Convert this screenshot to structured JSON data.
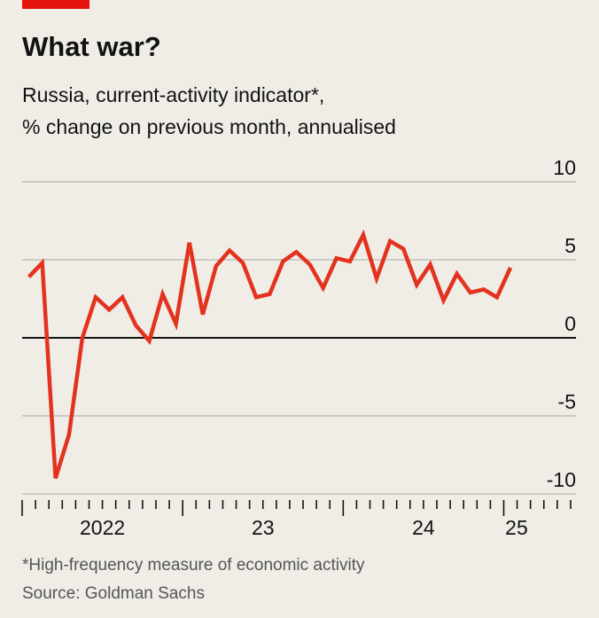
{
  "chart_data": {
    "type": "line",
    "title": "What war?",
    "subtitle": [
      "Russia, current-activity indicator*,",
      "% change on previous month, annualised"
    ],
    "x": [
      2022.042,
      2022.125,
      2022.208,
      2022.292,
      2022.375,
      2022.458,
      2022.542,
      2022.625,
      2022.708,
      2022.792,
      2022.875,
      2022.958,
      2023.042,
      2023.125,
      2023.208,
      2023.292,
      2023.375,
      2023.458,
      2023.542,
      2023.625,
      2023.708,
      2023.792,
      2023.875,
      2023.958,
      2024.042,
      2024.125,
      2024.208,
      2024.292,
      2024.375,
      2024.458,
      2024.542,
      2024.625,
      2024.708,
      2024.792,
      2024.875,
      2024.958,
      2025.042
    ],
    "series": [
      {
        "name": "Current-activity indicator",
        "color": "#e3321e",
        "values": [
          3.9,
          4.8,
          -9.0,
          -6.2,
          0.0,
          2.6,
          1.8,
          2.6,
          0.8,
          -0.2,
          2.8,
          0.9,
          6.1,
          1.5,
          4.6,
          5.6,
          4.8,
          2.6,
          2.8,
          4.9,
          5.5,
          4.7,
          3.2,
          5.1,
          4.9,
          6.6,
          3.8,
          6.2,
          5.7,
          3.4,
          4.7,
          2.4,
          4.1,
          2.9,
          3.1,
          2.6,
          4.5
        ]
      }
    ],
    "xlim": [
      2022,
      2025.45
    ],
    "xticks": [
      {
        "value": 2022.5,
        "label": "2022"
      },
      {
        "value": 2023.5,
        "label": "23"
      },
      {
        "value": 2024.5,
        "label": "24"
      },
      {
        "value": 2025.08,
        "label": "25"
      }
    ],
    "ylim": [
      -10,
      10
    ],
    "yticks": [
      10,
      5,
      0,
      -5,
      -10
    ],
    "grid": true,
    "footnote": "*High-frequency measure of economic activity",
    "source": "Source: Goldman Sachs"
  }
}
